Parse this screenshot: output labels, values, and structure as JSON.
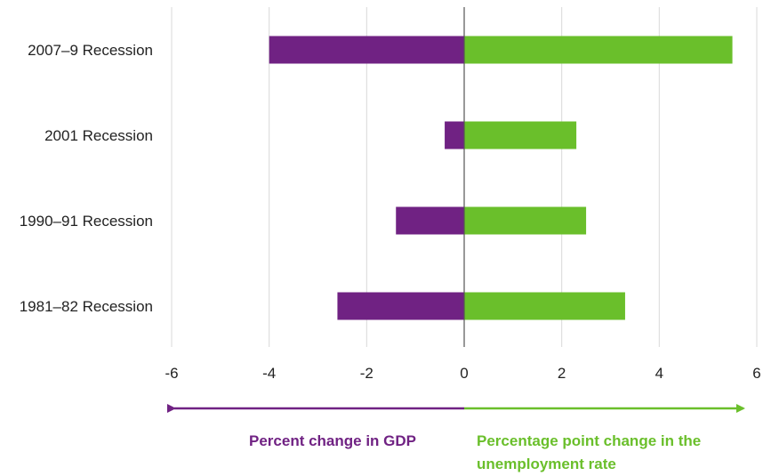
{
  "colors": {
    "gdp": "#702283",
    "unemployment": "#6abf2b"
  },
  "captions": {
    "gdp": "Percent change in GDP",
    "unemployment": "Percentage point change in the unemployment rate"
  },
  "chart_data": {
    "type": "bar",
    "orientation": "horizontal",
    "categories": [
      "2007–9 Recession",
      "2001 Recession",
      "1990–91 Recession",
      "1981–82 Recession"
    ],
    "series": [
      {
        "name": "Percent change in GDP",
        "values": [
          -4.0,
          -0.4,
          -1.4,
          -2.6
        ]
      },
      {
        "name": "Percentage point change in the unemployment rate",
        "values": [
          5.5,
          2.3,
          2.5,
          3.3
        ]
      }
    ],
    "xlim": [
      -6,
      6
    ],
    "xticks": [
      -6,
      -4,
      -2,
      0,
      2,
      4,
      6
    ],
    "grid": true,
    "title": "",
    "xlabel": "",
    "ylabel": ""
  }
}
